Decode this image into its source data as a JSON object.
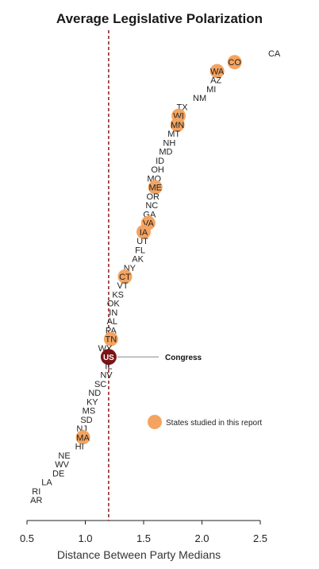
{
  "chart_data": {
    "type": "scatter",
    "title": "Average Legislative Polarization",
    "xlabel": "Distance Between Party Medians",
    "ylabel": "",
    "xlim": [
      0.5,
      2.5
    ],
    "xticks": [
      "0.5",
      "1.0",
      "1.5",
      "2.0",
      "2.5"
    ],
    "reference_line": {
      "x": 1.2,
      "style": "dashed",
      "color": "#8B1A1A"
    },
    "legend": {
      "label": "States studied in this report",
      "marker_color": "#F4A460",
      "placement": "right"
    },
    "annotation": {
      "label": "Congress",
      "target": "US"
    },
    "points": [
      {
        "label": "CA",
        "x": 2.62,
        "highlighted": false
      },
      {
        "label": "CO",
        "x": 2.28,
        "highlighted": true
      },
      {
        "label": "WA",
        "x": 2.13,
        "highlighted": true
      },
      {
        "label": "AZ",
        "x": 2.12,
        "highlighted": false
      },
      {
        "label": "MI",
        "x": 2.08,
        "highlighted": false
      },
      {
        "label": "NM",
        "x": 1.98,
        "highlighted": false
      },
      {
        "label": "TX",
        "x": 1.83,
        "highlighted": false
      },
      {
        "label": "WI",
        "x": 1.8,
        "highlighted": true
      },
      {
        "label": "MN",
        "x": 1.79,
        "highlighted": true
      },
      {
        "label": "MT",
        "x": 1.76,
        "highlighted": false
      },
      {
        "label": "NH",
        "x": 1.72,
        "highlighted": false
      },
      {
        "label": "MD",
        "x": 1.69,
        "highlighted": false
      },
      {
        "label": "ID",
        "x": 1.64,
        "highlighted": false
      },
      {
        "label": "OH",
        "x": 1.62,
        "highlighted": false
      },
      {
        "label": "MO",
        "x": 1.59,
        "highlighted": false
      },
      {
        "label": "ME",
        "x": 1.6,
        "highlighted": true
      },
      {
        "label": "OR",
        "x": 1.58,
        "highlighted": false
      },
      {
        "label": "NC",
        "x": 1.57,
        "highlighted": false
      },
      {
        "label": "GA",
        "x": 1.55,
        "highlighted": false
      },
      {
        "label": "VA",
        "x": 1.54,
        "highlighted": true
      },
      {
        "label": "IA",
        "x": 1.5,
        "highlighted": true
      },
      {
        "label": "UT",
        "x": 1.49,
        "highlighted": false
      },
      {
        "label": "FL",
        "x": 1.47,
        "highlighted": false
      },
      {
        "label": "AK",
        "x": 1.45,
        "highlighted": false
      },
      {
        "label": "NY",
        "x": 1.38,
        "highlighted": false
      },
      {
        "label": "CT",
        "x": 1.34,
        "highlighted": true
      },
      {
        "label": "VT",
        "x": 1.32,
        "highlighted": false
      },
      {
        "label": "KS",
        "x": 1.28,
        "highlighted": false
      },
      {
        "label": "OK",
        "x": 1.24,
        "highlighted": false
      },
      {
        "label": "IN",
        "x": 1.24,
        "highlighted": false
      },
      {
        "label": "AL",
        "x": 1.23,
        "highlighted": false
      },
      {
        "label": "PA",
        "x": 1.22,
        "highlighted": false
      },
      {
        "label": "TN",
        "x": 1.22,
        "highlighted": true
      },
      {
        "label": "WY",
        "x": 1.17,
        "highlighted": false
      },
      {
        "label": "US",
        "x": 1.2,
        "highlighted": false,
        "congress": true
      },
      {
        "label": "IL",
        "x": 1.2,
        "highlighted": false
      },
      {
        "label": "NV",
        "x": 1.18,
        "highlighted": false
      },
      {
        "label": "SC",
        "x": 1.13,
        "highlighted": false
      },
      {
        "label": "ND",
        "x": 1.08,
        "highlighted": false
      },
      {
        "label": "KY",
        "x": 1.06,
        "highlighted": false
      },
      {
        "label": "MS",
        "x": 1.03,
        "highlighted": false
      },
      {
        "label": "SD",
        "x": 1.01,
        "highlighted": false
      },
      {
        "label": "NJ",
        "x": 0.97,
        "highlighted": false
      },
      {
        "label": "MA",
        "x": 0.98,
        "highlighted": true
      },
      {
        "label": "HI",
        "x": 0.95,
        "highlighted": false
      },
      {
        "label": "NE",
        "x": 0.82,
        "highlighted": false
      },
      {
        "label": "WV",
        "x": 0.8,
        "highlighted": false
      },
      {
        "label": "DE",
        "x": 0.77,
        "highlighted": false
      },
      {
        "label": "LA",
        "x": 0.67,
        "highlighted": false
      },
      {
        "label": "RI",
        "x": 0.58,
        "highlighted": false
      },
      {
        "label": "AR",
        "x": 0.58,
        "highlighted": false
      }
    ]
  }
}
